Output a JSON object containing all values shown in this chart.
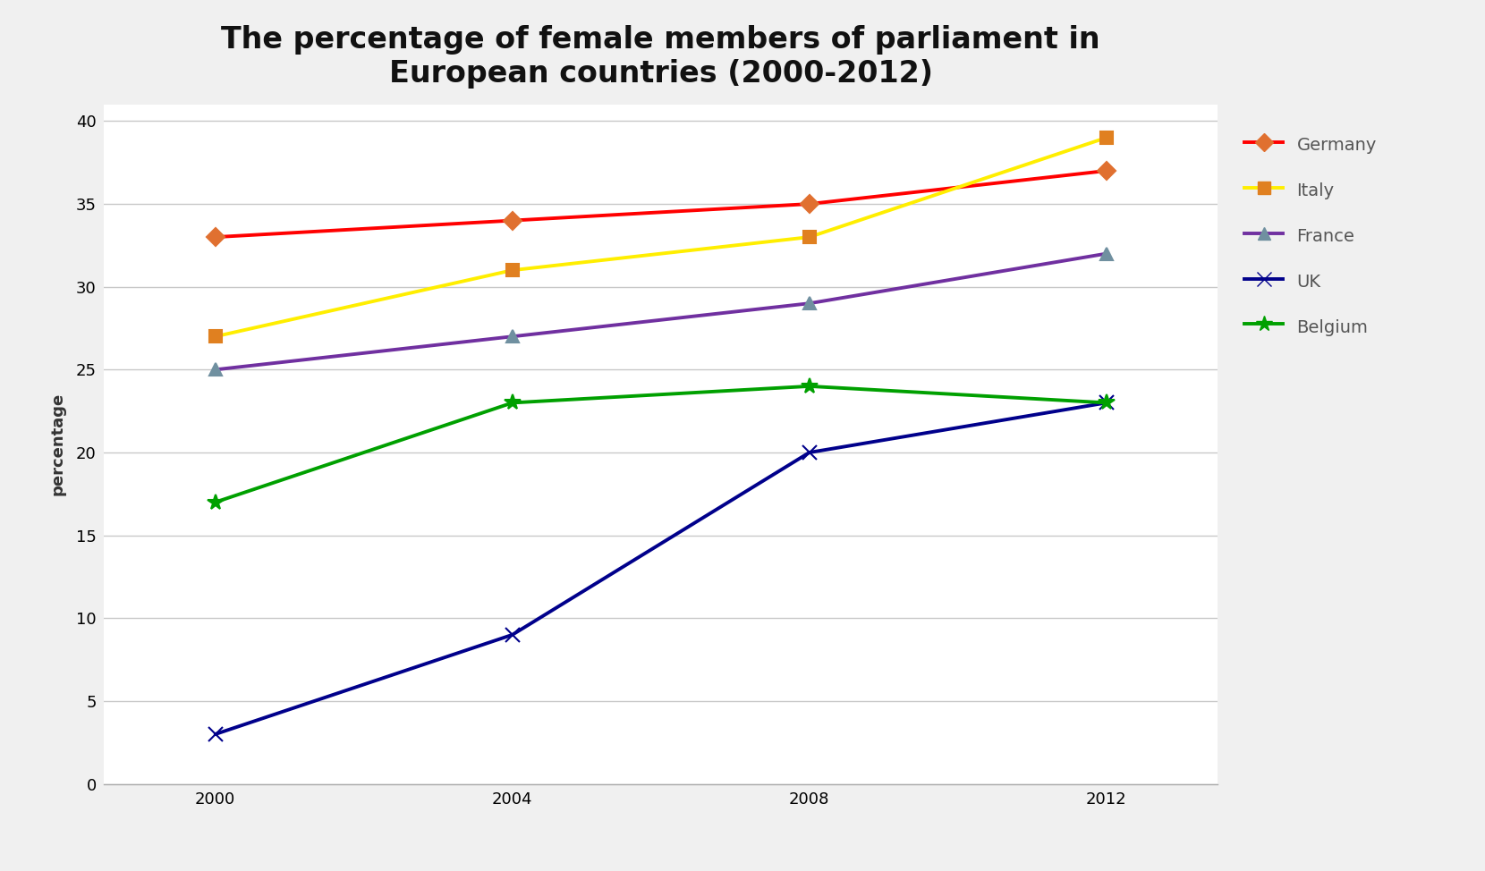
{
  "title": "The percentage of female members of parliament in\nEuropean countries (2000-2012)",
  "ylabel": "percentage",
  "years": [
    2000,
    2004,
    2008,
    2012
  ],
  "series": [
    {
      "name": "Germany",
      "values": [
        33,
        34,
        35,
        37
      ],
      "color": "#ff0000",
      "marker": "D",
      "markersize": 10,
      "linewidth": 2.8,
      "markerfacecolor": "#e07030"
    },
    {
      "name": "Italy",
      "values": [
        27,
        31,
        33,
        39
      ],
      "color": "#ffee00",
      "marker": "s",
      "markersize": 10,
      "linewidth": 2.8,
      "markerfacecolor": "#e08020"
    },
    {
      "name": "France",
      "values": [
        25,
        27,
        29,
        32
      ],
      "color": "#7030a0",
      "marker": "^",
      "markersize": 10,
      "linewidth": 2.8,
      "markerfacecolor": "#7090a0"
    },
    {
      "name": "UK",
      "values": [
        3,
        9,
        20,
        23
      ],
      "color": "#00008b",
      "marker": "x",
      "markersize": 11,
      "linewidth": 2.8,
      "markerfacecolor": "#00008b"
    },
    {
      "name": "Belgium",
      "values": [
        17,
        23,
        24,
        23
      ],
      "color": "#00a000",
      "marker": "*",
      "markersize": 13,
      "linewidth": 2.8,
      "markerfacecolor": "#00a000"
    }
  ],
  "ylim": [
    0,
    41
  ],
  "yticks": [
    0,
    5,
    10,
    15,
    20,
    25,
    30,
    35,
    40
  ],
  "xticks": [
    2000,
    2004,
    2008,
    2012
  ],
  "xlim": [
    1998.5,
    2013.5
  ],
  "background_color": "#f0f0f0",
  "plot_bg_color": "#ffffff",
  "grid_color": "#c8c8c8",
  "title_fontsize": 24,
  "axis_label_fontsize": 13,
  "tick_fontsize": 13,
  "legend_fontsize": 14,
  "legend_text_color": "#555555"
}
